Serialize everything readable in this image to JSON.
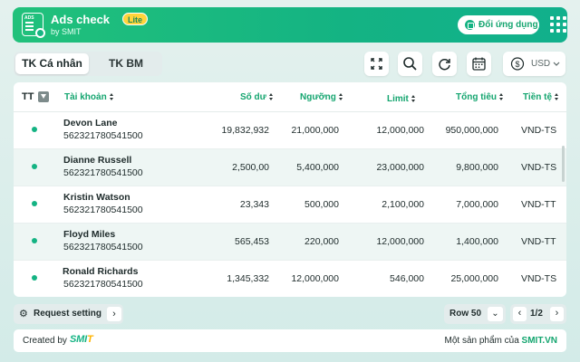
{
  "header": {
    "app_title": "Ads check",
    "badge": "Lite",
    "byline": "by SMIT",
    "other_apps_label": "Đổi ứng dụng",
    "accent_color": "#14b383"
  },
  "tabs": [
    {
      "label": "TK Cá nhân",
      "active": true
    },
    {
      "label": "TK BM",
      "active": false
    }
  ],
  "toolbar": {
    "icons": [
      "fullscreen-icon",
      "search-icon",
      "refresh-icon",
      "calendar-icon"
    ],
    "currency": "USD"
  },
  "table": {
    "headers": {
      "status": "TT",
      "account": "Tài khoản",
      "balance": "Số dư",
      "threshold": "Ngưỡng",
      "limit": "Limit",
      "total_spend": "Tổng tiêu",
      "currency": "Tiền tệ"
    },
    "rows": [
      {
        "name": "Devon Lane",
        "id": "562321780541500",
        "balance": "19,832,932",
        "threshold": "21,000,000",
        "limit": "12,000,000",
        "total": "950,000,000",
        "currency": "VND-TS"
      },
      {
        "name": "Dianne Russell",
        "id": "562321780541500",
        "balance": "2,500,00",
        "threshold": "5,400,000",
        "limit": "23,000,000",
        "total": "9,800,000",
        "currency": "VND-TS"
      },
      {
        "name": "Kristin Watson",
        "id": "562321780541500",
        "balance": "23,343",
        "threshold": "500,000",
        "limit": "2,100,000",
        "total": "7,000,000",
        "currency": "VND-TT"
      },
      {
        "name": "Floyd Miles",
        "id": "562321780541500",
        "balance": "565,453",
        "threshold": "220,000",
        "limit": "12,000,000",
        "total": "1,400,000",
        "currency": "VND-TT"
      },
      {
        "name": "Ronald Richards",
        "id": "562321780541500",
        "balance": "1,345,332",
        "threshold": "12,000,000",
        "limit": "546,000",
        "total": "25,000,000",
        "currency": "VND-TS"
      }
    ]
  },
  "bottom_bar": {
    "request_setting": "Request setting",
    "rows_label": "Row 50",
    "page": "1/2"
  },
  "footer": {
    "created_by": "Created by",
    "brand_main": "SMI",
    "brand_tail": "T",
    "product_of": "Một sản phẩm của",
    "product_link": "SMIT.VN"
  }
}
